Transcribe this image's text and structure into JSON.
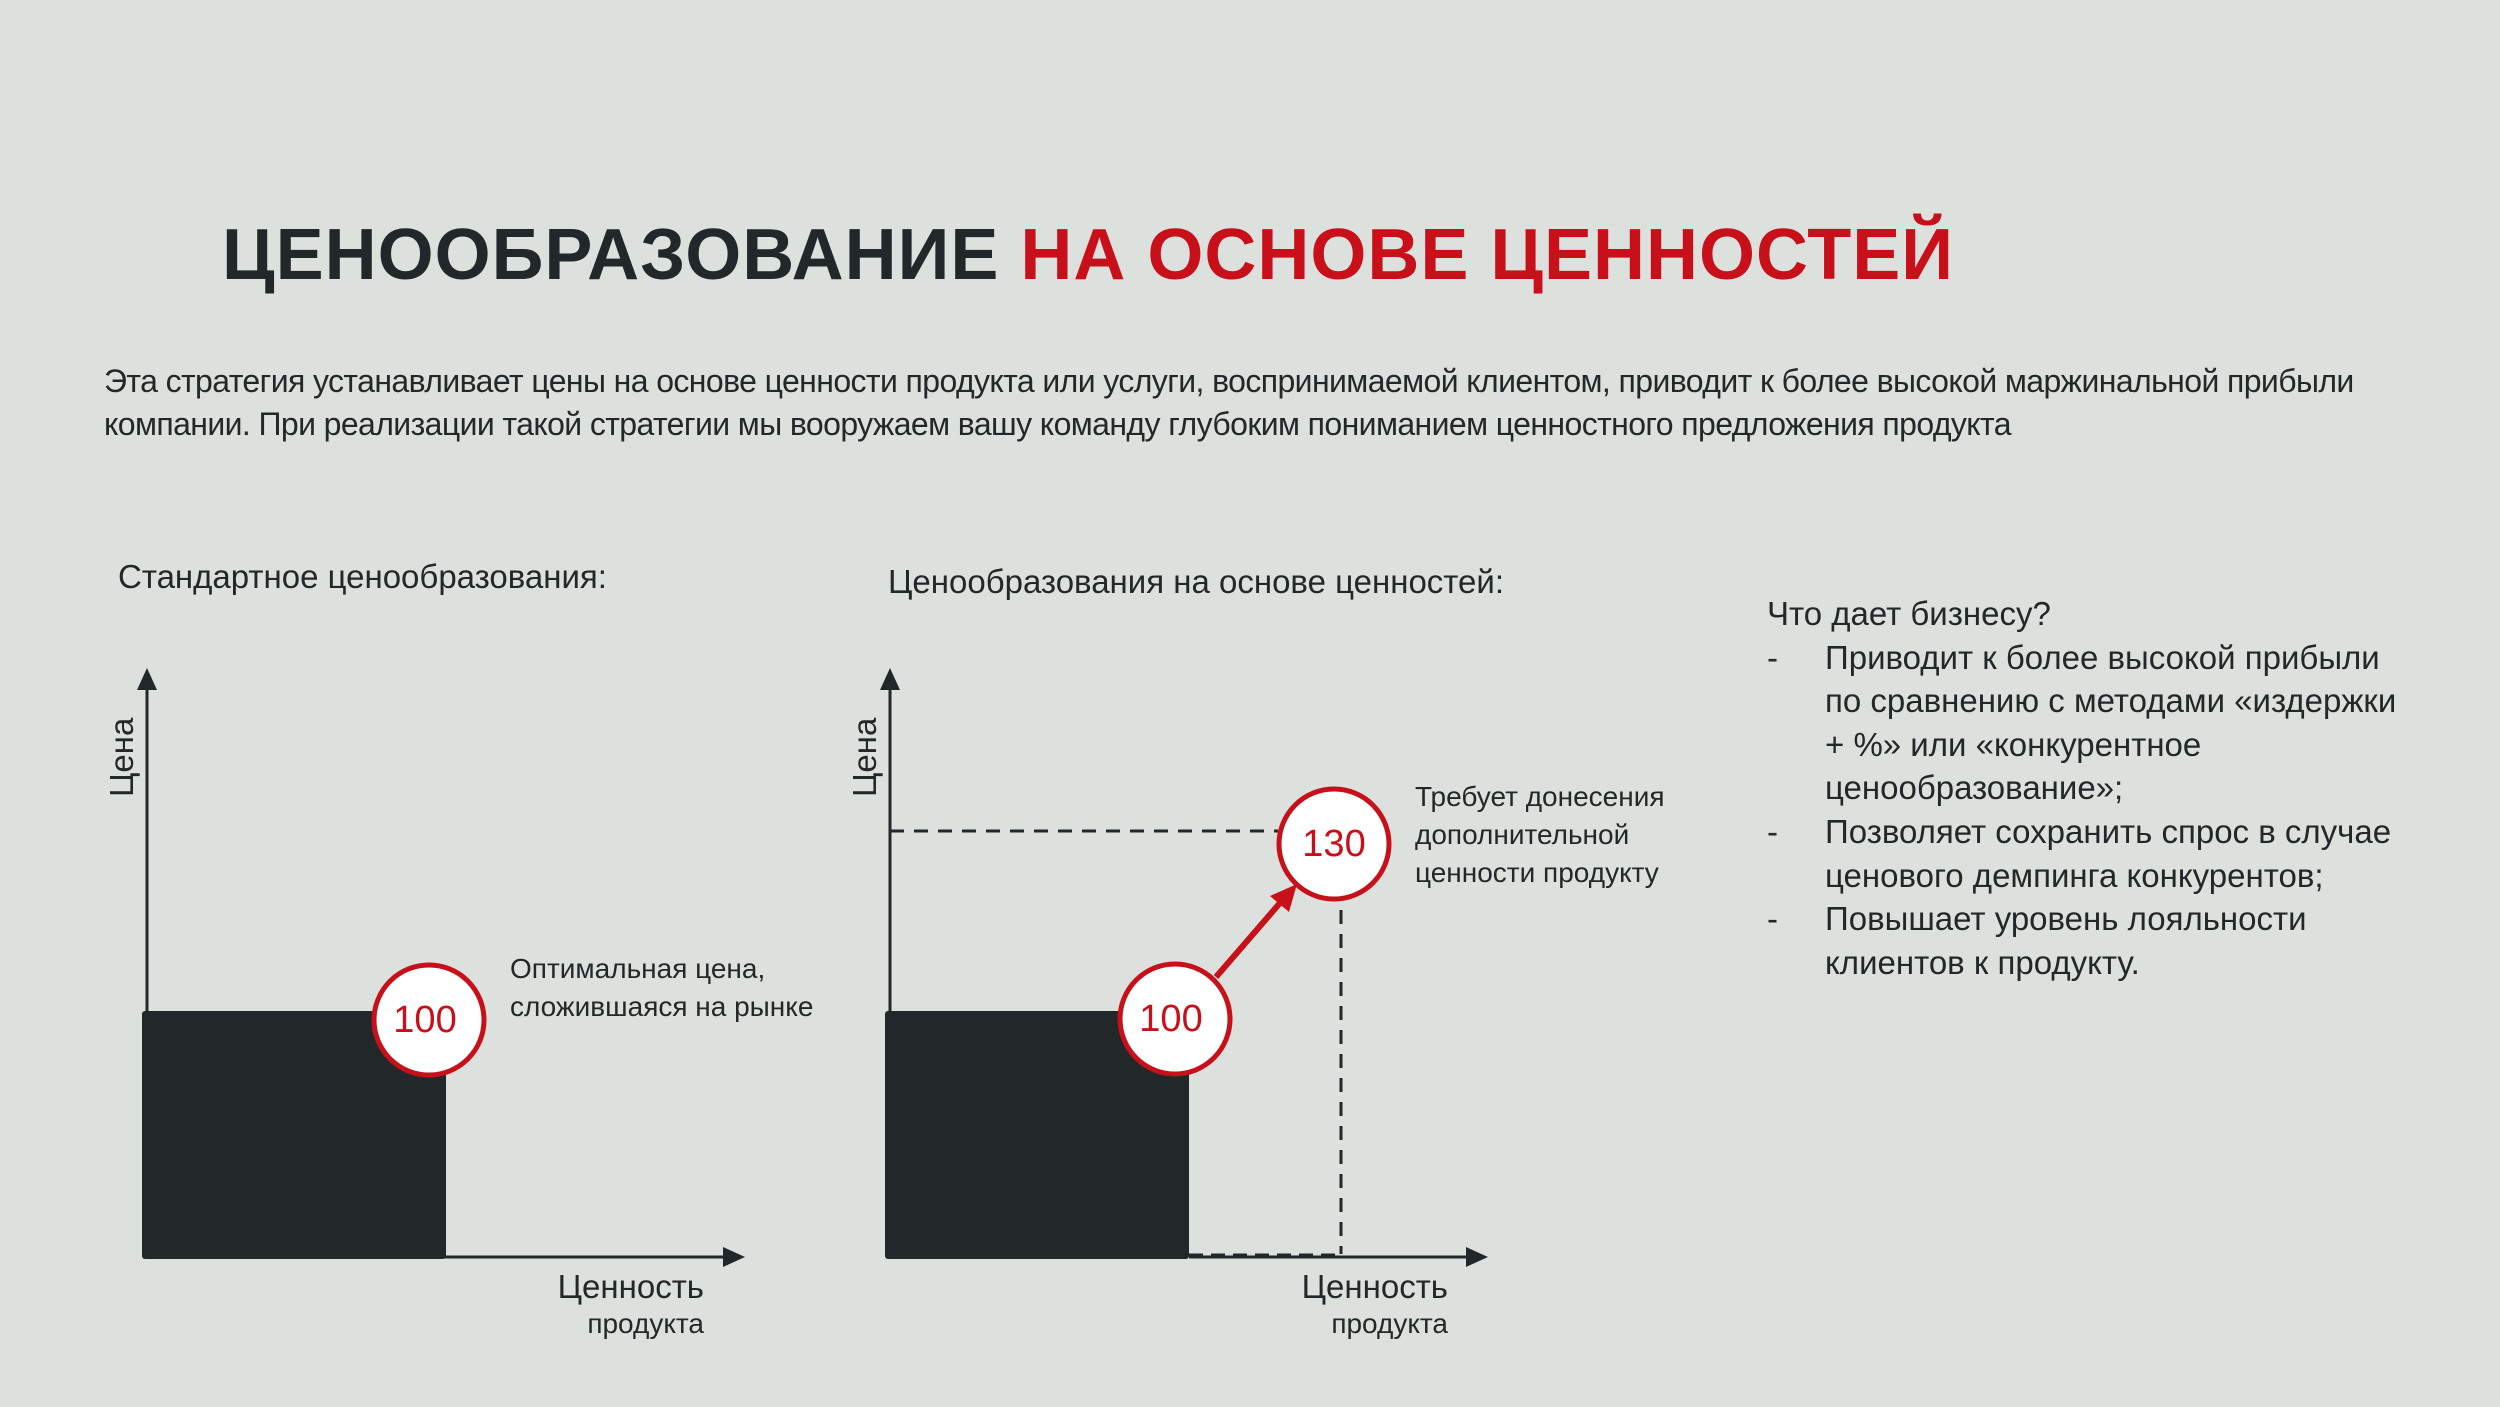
{
  "title": {
    "part1": "ЦЕНООБРАЗОВАНИЕ ",
    "part2": "НА ОСНОВЕ ЦЕННОСТЕЙ"
  },
  "intro": "Эта стратегия устанавливает цены на основе ценности продукта или услуги, воспринимаемой клиентом, приводит к более высокой маржинальной прибыли компании. При реализации такой стратегии мы вооружаем вашу команду глубоким пониманием ценностного предложения продукта",
  "colors": {
    "background": "#dde1de",
    "dark": "#222729",
    "accent": "#c8101a"
  },
  "standard": {
    "subtitle": "Стандартное ценообразования:",
    "y_label": "Цена",
    "x_label_1": "Ценность",
    "x_label_2": "продукта",
    "price_value": "100",
    "note_1": "Оптимальная цена,",
    "note_2": "сложившаяся на рынке"
  },
  "value_based": {
    "subtitle": "Ценообразования на основе ценностей:",
    "y_label": "Цена",
    "x_label_1": "Ценность",
    "x_label_2": "продукта",
    "base_value": "100",
    "raised_value": "130",
    "note_1": "Требует донесения",
    "note_2": "дополнительной",
    "note_3": "ценности продукту"
  },
  "benefits": {
    "heading": "Что дает бизнесу?",
    "bullet": "-",
    "items": [
      "Приводит к более высокой прибыли по сравнению с методами «издержки + %» или «конкурентное ценообразование»;",
      "Позволяет сохранить спрос в случае ценового демпинга конкурентов;",
      "Повышает уровень лояльности клиентов к продукту."
    ]
  }
}
